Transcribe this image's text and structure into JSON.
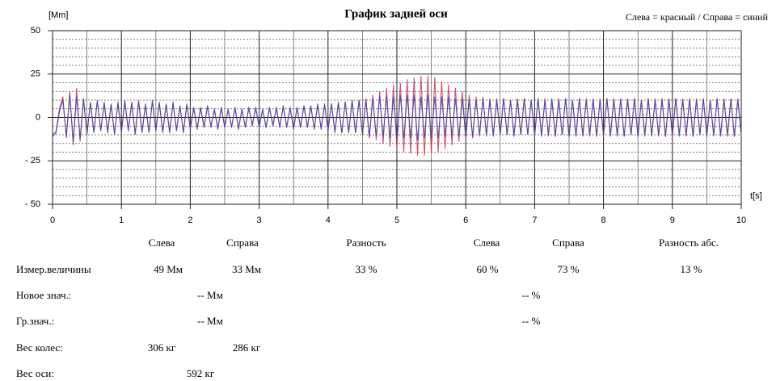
{
  "chart_data": {
    "type": "line",
    "title": "График задней оси",
    "legend_note": "Слева = красный / Справа = синий",
    "y_label": "[Mm]",
    "x_label": "t[s]",
    "xlim": [
      0,
      10
    ],
    "ylim": [
      -50,
      50
    ],
    "xticks": [
      0,
      1,
      2,
      3,
      4,
      5,
      6,
      7,
      8,
      9,
      10
    ],
    "yticks": [
      50,
      25,
      0,
      {
        "value": -25,
        "label": "- 25"
      },
      {
        "value": -50,
        "label": "- 50"
      }
    ],
    "minor_xticks": [
      0.5,
      1.5,
      2.5,
      3.5,
      4.5,
      5.5,
      6.5,
      7.5,
      8.5,
      9.5
    ],
    "minor_yticks": [
      -45,
      -40,
      -35,
      -30,
      -20,
      -15,
      -10,
      -5,
      5,
      10,
      15,
      20,
      30,
      35,
      40,
      45
    ],
    "grid": true,
    "x": [
      0,
      0.05,
      0.1,
      0.15,
      0.2,
      0.25,
      0.3,
      0.35,
      0.4,
      0.45,
      0.5,
      0.55,
      0.6,
      0.65,
      0.7,
      0.75,
      0.8,
      0.85,
      0.9,
      0.95,
      1,
      1.05,
      1.1,
      1.15,
      1.2,
      1.25,
      1.3,
      1.35,
      1.4,
      1.45,
      1.5,
      1.55,
      1.6,
      1.65,
      1.7,
      1.75,
      1.8,
      1.85,
      1.9,
      1.95,
      2,
      2.05,
      2.1,
      2.15,
      2.2,
      2.25,
      2.3,
      2.35,
      2.4,
      2.45,
      2.5,
      2.55,
      2.6,
      2.65,
      2.7,
      2.75,
      2.8,
      2.85,
      2.9,
      2.95,
      3,
      3.05,
      3.1,
      3.15,
      3.2,
      3.25,
      3.3,
      3.35,
      3.4,
      3.45,
      3.5,
      3.55,
      3.6,
      3.65,
      3.7,
      3.75,
      3.8,
      3.85,
      3.9,
      3.95,
      4,
      4.05,
      4.1,
      4.15,
      4.2,
      4.25,
      4.3,
      4.35,
      4.4,
      4.45,
      4.5,
      4.55,
      4.6,
      4.65,
      4.7,
      4.75,
      4.8,
      4.85,
      4.9,
      4.95,
      5,
      5.05,
      5.1,
      5.15,
      5.2,
      5.25,
      5.3,
      5.35,
      5.4,
      5.45,
      5.5,
      5.55,
      5.6,
      5.65,
      5.7,
      5.75,
      5.8,
      5.85,
      5.9,
      5.95,
      6,
      6.05,
      6.1,
      6.15,
      6.2,
      6.25,
      6.3,
      6.35,
      6.4,
      6.45,
      6.5,
      6.55,
      6.6,
      6.65,
      6.7,
      6.75,
      6.8,
      6.85,
      6.9,
      6.95,
      7,
      7.05,
      7.1,
      7.15,
      7.2,
      7.25,
      7.3,
      7.35,
      7.4,
      7.45,
      7.5,
      7.55,
      7.6,
      7.65,
      7.7,
      7.75,
      7.8,
      7.85,
      7.9,
      7.95,
      8,
      8.05,
      8.1,
      8.15,
      8.2,
      8.25,
      8.3,
      8.35,
      8.4,
      8.45,
      8.5,
      8.55,
      8.6,
      8.65,
      8.7,
      8.75,
      8.8,
      8.85,
      8.9,
      8.95,
      9,
      9.05,
      9.1,
      9.15,
      9.2,
      9.25,
      9.3,
      9.35,
      9.4,
      9.45,
      9.5,
      9.55,
      9.6,
      9.65,
      9.7,
      9.75,
      9.8,
      9.85,
      9.9,
      9.95,
      10
    ],
    "series": [
      {
        "color": "#c8385a",
        "values": [
          -10,
          -8,
          5,
          12,
          -12,
          15,
          -16,
          17,
          -14,
          10,
          -9,
          8,
          -8,
          9,
          -7,
          8,
          -8,
          7,
          -9,
          8,
          -8,
          9,
          -7,
          8,
          -9,
          10,
          -8,
          7,
          -8,
          9,
          -7,
          8,
          -8,
          7,
          -9,
          8,
          -7,
          6,
          -8,
          7,
          -6,
          5,
          -6,
          5,
          -5,
          6,
          -5,
          4,
          -6,
          5,
          -5,
          4,
          -5,
          5,
          -6,
          4,
          -5,
          5,
          -4,
          5,
          -5,
          4,
          -5,
          5,
          -4,
          5,
          -5,
          6,
          -5,
          5,
          -6,
          5,
          -5,
          6,
          -5,
          6,
          -6,
          7,
          -6,
          7,
          -7,
          8,
          -8,
          8,
          -9,
          9,
          -8,
          9,
          -9,
          10,
          -10,
          11,
          -12,
          13,
          -13,
          15,
          -15,
          17,
          -17,
          19,
          -18,
          20,
          -20,
          22,
          -21,
          23,
          -22,
          24,
          -22,
          24,
          -21,
          23,
          -20,
          21,
          -18,
          19,
          -16,
          17,
          -14,
          15,
          -13,
          13,
          -12,
          12,
          -11,
          12,
          -11,
          11,
          -10,
          11,
          -10,
          11,
          -10,
          10,
          -10,
          11,
          -10,
          11,
          -10,
          10,
          -11,
          11,
          -10,
          11,
          -11,
          10,
          -11,
          11,
          -10,
          11,
          -11,
          10,
          -11,
          11,
          -10,
          11,
          -11,
          10,
          -11,
          11,
          -11,
          11,
          -10,
          11,
          -11,
          10,
          -11,
          11,
          -10,
          11,
          -11,
          10,
          -11,
          11,
          -10,
          11,
          -11,
          10,
          -11,
          11,
          -11,
          11,
          -10,
          11,
          -11,
          10,
          -11,
          11,
          -10,
          11,
          -11,
          10,
          -11,
          11,
          -10,
          11,
          -11,
          10,
          -11,
          11,
          -10
        ]
      },
      {
        "color": "#3a44a8",
        "values": [
          -11,
          -9,
          3,
          10,
          -11,
          13,
          -14,
          12,
          -12,
          11,
          -10,
          9,
          -9,
          10,
          -8,
          9,
          -9,
          8,
          -10,
          9,
          -9,
          10,
          -8,
          9,
          -10,
          9,
          -9,
          8,
          -9,
          10,
          -8,
          9,
          -9,
          8,
          -8,
          9,
          -8,
          7,
          -9,
          8,
          -7,
          6,
          -7,
          6,
          -6,
          7,
          -6,
          5,
          -7,
          6,
          -6,
          5,
          -6,
          6,
          -7,
          5,
          -6,
          6,
          -5,
          6,
          -6,
          5,
          -6,
          6,
          -5,
          6,
          -6,
          7,
          -6,
          6,
          -7,
          6,
          -6,
          7,
          -6,
          7,
          -7,
          8,
          -7,
          8,
          -8,
          8,
          -9,
          9,
          -9,
          9,
          -9,
          10,
          -9,
          10,
          -10,
          10,
          -11,
          11,
          -11,
          12,
          -11,
          12,
          -12,
          12,
          -12,
          13,
          -12,
          13,
          -12,
          13,
          -13,
          12,
          -12,
          13,
          -12,
          12,
          -12,
          12,
          -11,
          12,
          -11,
          11,
          -11,
          11,
          -11,
          10,
          -11,
          10,
          -10,
          11,
          -10,
          10,
          -11,
          10,
          -10,
          11,
          -10,
          10,
          -11,
          10,
          -10,
          11,
          -10,
          10,
          -10,
          11,
          -11,
          10,
          -10,
          11,
          -11,
          10,
          -10,
          11,
          -11,
          10,
          -10,
          11,
          -11,
          10,
          -10,
          11,
          -11,
          10,
          -10,
          11,
          -11,
          10,
          -10,
          11,
          -11,
          10,
          -10,
          11,
          -11,
          10,
          -10,
          11,
          -11,
          10,
          -10,
          11,
          -11,
          10,
          -10,
          11,
          -11,
          10,
          -10,
          11,
          -11,
          10,
          -10,
          11,
          -11,
          10,
          -10,
          11,
          -11,
          10,
          -10,
          11,
          -11,
          10,
          -10
        ]
      }
    ]
  },
  "table": {
    "header": [
      "Слева",
      "Справа",
      "Разность",
      "Слева",
      "Справа",
      "Разность абс."
    ],
    "rows": [
      [
        "Измер.величины",
        "49 Мм",
        "33 Мм",
        "33 %",
        "60 %",
        "73 %",
        "13 %"
      ],
      [
        "Новое знач.:",
        "-- Мм",
        "-- %"
      ],
      [
        "Гр.знач.:",
        "-- Мм",
        "-- %"
      ],
      [
        "Вес колес:",
        "306 кг",
        "286 кг"
      ],
      [
        "Вес оси:",
        "592 кг"
      ]
    ]
  }
}
